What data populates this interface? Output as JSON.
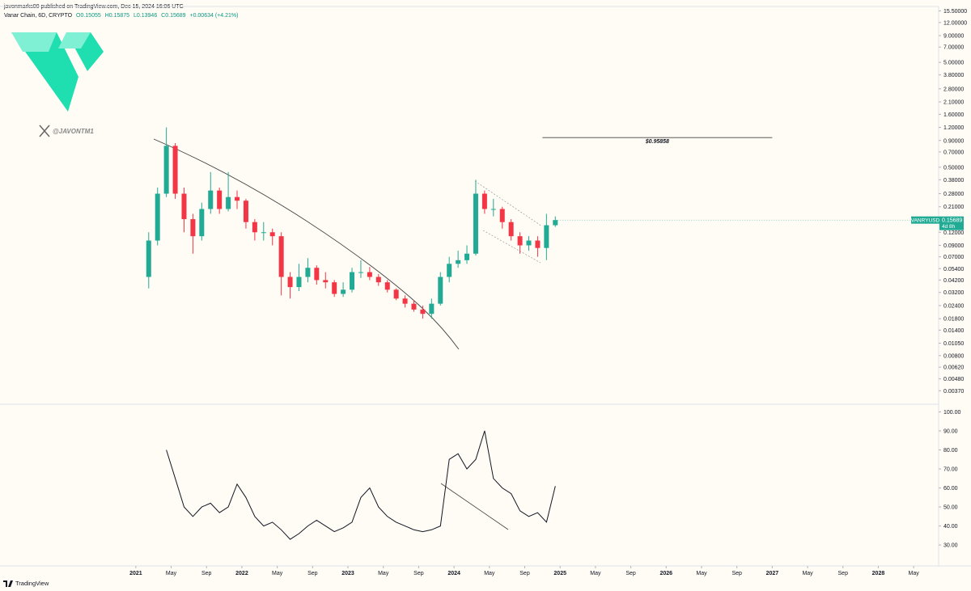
{
  "header": {
    "published": "javonmarks00 published on TradingView.com, Dec 15, 2024 16:06 UTC",
    "symbol": "Vanar Chain, 6D, CRYPTO",
    "ohlc": [
      "O0.15055",
      "H0.15875",
      "L0.13946",
      "C0.15689",
      "+0.00634 (+4.21%)"
    ]
  },
  "watermark": "@JAVONTM1",
  "footer": "TradingView",
  "chart_data": [
    {
      "type": "candlestick",
      "log_scale": true,
      "x": [
        "2021-02",
        "2021-03",
        "2021-04",
        "2021-05",
        "2021-06",
        "2021-07",
        "2021-08",
        "2021-09",
        "2021-10",
        "2021-11",
        "2021-12",
        "2022-01",
        "2022-02",
        "2022-03",
        "2022-04",
        "2022-05",
        "2022-06",
        "2022-07",
        "2022-08",
        "2022-09",
        "2022-10",
        "2022-11",
        "2022-12",
        "2023-01",
        "2023-02",
        "2023-03",
        "2023-04",
        "2023-05",
        "2023-06",
        "2023-07",
        "2023-08",
        "2023-09",
        "2023-10",
        "2023-11",
        "2023-12",
        "2024-01",
        "2024-02",
        "2024-03",
        "2024-04",
        "2024-05",
        "2024-06",
        "2024-07",
        "2024-08",
        "2024-09",
        "2024-10",
        "2024-11",
        "2024-12"
      ],
      "open": [
        0.045,
        0.1,
        0.28,
        0.8,
        0.28,
        0.16,
        0.11,
        0.2,
        0.3,
        0.2,
        0.26,
        0.24,
        0.15,
        0.12,
        0.12,
        0.11,
        0.045,
        0.036,
        0.045,
        0.055,
        0.042,
        0.04,
        0.031,
        0.034,
        0.05,
        0.05,
        0.045,
        0.04,
        0.034,
        0.028,
        0.025,
        0.022,
        0.02,
        0.025,
        0.045,
        0.06,
        0.065,
        0.075,
        0.28,
        0.2,
        0.2,
        0.15,
        0.11,
        0.09,
        0.1,
        0.085,
        0.14
      ],
      "high": [
        0.12,
        0.32,
        1.2,
        0.85,
        0.32,
        0.18,
        0.23,
        0.45,
        0.32,
        0.45,
        0.3,
        0.25,
        0.16,
        0.15,
        0.13,
        0.12,
        0.05,
        0.06,
        0.068,
        0.058,
        0.05,
        0.042,
        0.04,
        0.055,
        0.065,
        0.056,
        0.048,
        0.042,
        0.035,
        0.03,
        0.027,
        0.024,
        0.028,
        0.05,
        0.07,
        0.08,
        0.09,
        0.38,
        0.3,
        0.25,
        0.21,
        0.16,
        0.12,
        0.11,
        0.11,
        0.18,
        0.17
      ],
      "low": [
        0.035,
        0.09,
        0.26,
        0.25,
        0.12,
        0.075,
        0.1,
        0.18,
        0.18,
        0.19,
        0.2,
        0.13,
        0.1,
        0.1,
        0.09,
        0.03,
        0.028,
        0.033,
        0.04,
        0.038,
        0.035,
        0.029,
        0.029,
        0.032,
        0.044,
        0.042,
        0.037,
        0.032,
        0.027,
        0.023,
        0.021,
        0.018,
        0.018,
        0.024,
        0.04,
        0.055,
        0.06,
        0.072,
        0.18,
        0.17,
        0.13,
        0.1,
        0.075,
        0.08,
        0.07,
        0.065,
        0.135
      ],
      "close": [
        0.1,
        0.28,
        0.8,
        0.28,
        0.16,
        0.11,
        0.2,
        0.3,
        0.2,
        0.26,
        0.24,
        0.15,
        0.12,
        0.12,
        0.11,
        0.045,
        0.036,
        0.045,
        0.055,
        0.042,
        0.04,
        0.031,
        0.034,
        0.05,
        0.05,
        0.045,
        0.04,
        0.034,
        0.028,
        0.025,
        0.022,
        0.02,
        0.025,
        0.045,
        0.06,
        0.065,
        0.075,
        0.28,
        0.2,
        0.2,
        0.15,
        0.11,
        0.09,
        0.1,
        0.085,
        0.14,
        0.15689
      ],
      "up_color": "#22ab94",
      "down_color": "#f23645",
      "xlim": [
        "2019-10",
        "2028-07"
      ],
      "xticks": [
        {
          "value": "2021-01",
          "label": "2021"
        },
        {
          "value": "2021-05",
          "label": "May"
        },
        {
          "value": "2021-09",
          "label": "Sep"
        },
        {
          "value": "2022-01",
          "label": "2022"
        },
        {
          "value": "2022-05",
          "label": "May"
        },
        {
          "value": "2022-09",
          "label": "Sep"
        },
        {
          "value": "2023-01",
          "label": "2023"
        },
        {
          "value": "2023-05",
          "label": "May"
        },
        {
          "value": "2023-09",
          "label": "Sep"
        },
        {
          "value": "2024-01",
          "label": "2024"
        },
        {
          "value": "2024-05",
          "label": "May"
        },
        {
          "value": "2024-09",
          "label": "Sep"
        },
        {
          "value": "2025-01",
          "label": "2025"
        },
        {
          "value": "2025-05",
          "label": "May"
        },
        {
          "value": "2025-09",
          "label": "Sep"
        },
        {
          "value": "2026-01",
          "label": "2026"
        },
        {
          "value": "2026-05",
          "label": "May"
        },
        {
          "value": "2026-09",
          "label": "Sep"
        },
        {
          "value": "2027-01",
          "label": "2027"
        },
        {
          "value": "2027-05",
          "label": "May"
        },
        {
          "value": "2027-09",
          "label": "Sep"
        },
        {
          "value": "2028-01",
          "label": "2028"
        },
        {
          "value": "2028-05",
          "label": "May"
        }
      ],
      "ylim": [
        0.0029,
        18
      ],
      "yticks": [
        {
          "value": 15.5,
          "label": "15.50000"
        },
        {
          "value": 12,
          "label": "12.00000"
        },
        {
          "value": 9,
          "label": "9.00000"
        },
        {
          "value": 7,
          "label": "7.00000"
        },
        {
          "value": 5,
          "label": "5.00000"
        },
        {
          "value": 3.8,
          "label": "3.80000"
        },
        {
          "value": 2.8,
          "label": "2.80000"
        },
        {
          "value": 2.1,
          "label": "2.10000"
        },
        {
          "value": 1.6,
          "label": "1.60000"
        },
        {
          "value": 1.2,
          "label": "1.20000"
        },
        {
          "value": 0.9,
          "label": "0.90000"
        },
        {
          "value": 0.7,
          "label": "0.70000"
        },
        {
          "value": 0.5,
          "label": "0.50000"
        },
        {
          "value": 0.38,
          "label": "0.38000"
        },
        {
          "value": 0.28,
          "label": "0.28000"
        },
        {
          "value": 0.21,
          "label": "0.21000"
        },
        {
          "value": 0.12,
          "label": "0.12000"
        },
        {
          "value": 0.09,
          "label": "0.09000"
        },
        {
          "value": 0.07,
          "label": "0.07000"
        },
        {
          "value": 0.054,
          "label": "0.05400"
        },
        {
          "value": 0.042,
          "label": "0.04200"
        },
        {
          "value": 0.032,
          "label": "0.03200"
        },
        {
          "value": 0.024,
          "label": "0.02400"
        },
        {
          "value": 0.018,
          "label": "0.01800"
        },
        {
          "value": 0.014,
          "label": "0.01400"
        },
        {
          "value": 0.0105,
          "label": "0.01050"
        },
        {
          "value": 0.008,
          "label": "0.00800"
        },
        {
          "value": 0.0062,
          "label": "0.00620"
        },
        {
          "value": 0.0048,
          "label": "0.00480"
        },
        {
          "value": 0.0037,
          "label": "0.00370"
        }
      ],
      "level": {
        "value": 0.95858,
        "label": "$0.95858",
        "x": [
          "2024-11",
          "2027-01"
        ]
      },
      "last_price": {
        "symbol": "VANRYUSD",
        "countdown": "4d 8h",
        "color": "#22ab94"
      }
    },
    {
      "type": "line",
      "color": "#131722",
      "x": [
        "2021-02",
        "2021-03",
        "2021-04",
        "2021-05",
        "2021-06",
        "2021-07",
        "2021-08",
        "2021-09",
        "2021-10",
        "2021-11",
        "2021-12",
        "2022-01",
        "2022-02",
        "2022-03",
        "2022-04",
        "2022-05",
        "2022-06",
        "2022-07",
        "2022-08",
        "2022-09",
        "2022-10",
        "2022-11",
        "2022-12",
        "2023-01",
        "2023-02",
        "2023-03",
        "2023-04",
        "2023-05",
        "2023-06",
        "2023-07",
        "2023-08",
        "2023-09",
        "2023-10",
        "2023-11",
        "2023-12",
        "2024-01",
        "2024-02",
        "2024-03",
        "2024-04",
        "2024-05",
        "2024-06",
        "2024-07",
        "2024-08",
        "2024-09",
        "2024-10",
        "2024-11",
        "2024-12"
      ],
      "values": [
        null,
        null,
        80,
        65,
        50,
        45,
        50,
        52,
        47,
        50,
        62,
        55,
        45,
        40,
        42,
        38,
        33,
        36,
        40,
        43,
        40,
        37,
        39,
        42,
        55,
        60,
        50,
        45,
        42,
        40,
        38,
        37,
        38,
        40,
        75,
        78,
        70,
        75,
        90,
        65,
        60,
        57,
        48,
        45,
        47,
        42,
        61
      ],
      "ylim": [
        19,
        104
      ],
      "yticks": [
        {
          "value": 100,
          "label": "100.00"
        },
        {
          "value": 90,
          "label": "90.00"
        },
        {
          "value": 80,
          "label": "80.00"
        },
        {
          "value": 70,
          "label": "70.00"
        },
        {
          "value": 60,
          "label": "60.00"
        },
        {
          "value": 50,
          "label": "50.00"
        },
        {
          "value": 40,
          "label": "40.00"
        },
        {
          "value": 30,
          "label": "30.00"
        }
      ]
    }
  ]
}
